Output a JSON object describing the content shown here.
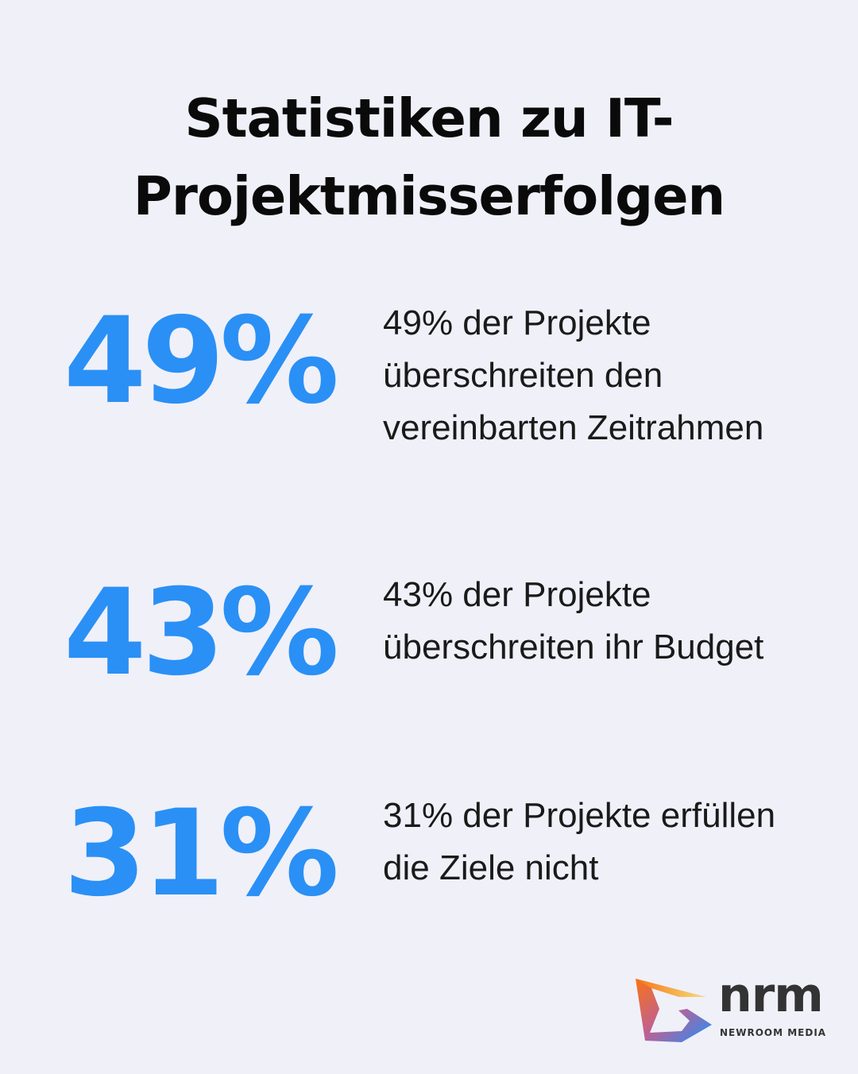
{
  "title": "Statistiken zu IT-Projektmisserfolgen",
  "accent": "#2a90f5",
  "stats": [
    {
      "value": "49%",
      "text": "49% der Projekte überschreiten den vereinbarten Zeitrahmen"
    },
    {
      "value": "43%",
      "text": "43% der Projekte überschreiten ihr Budget"
    },
    {
      "value": "31%",
      "text": "31% der Projekte erfüllen die Ziele nicht"
    }
  ],
  "logo": {
    "name": "nrm",
    "subtitle": "NEWROOM MEDIA"
  }
}
